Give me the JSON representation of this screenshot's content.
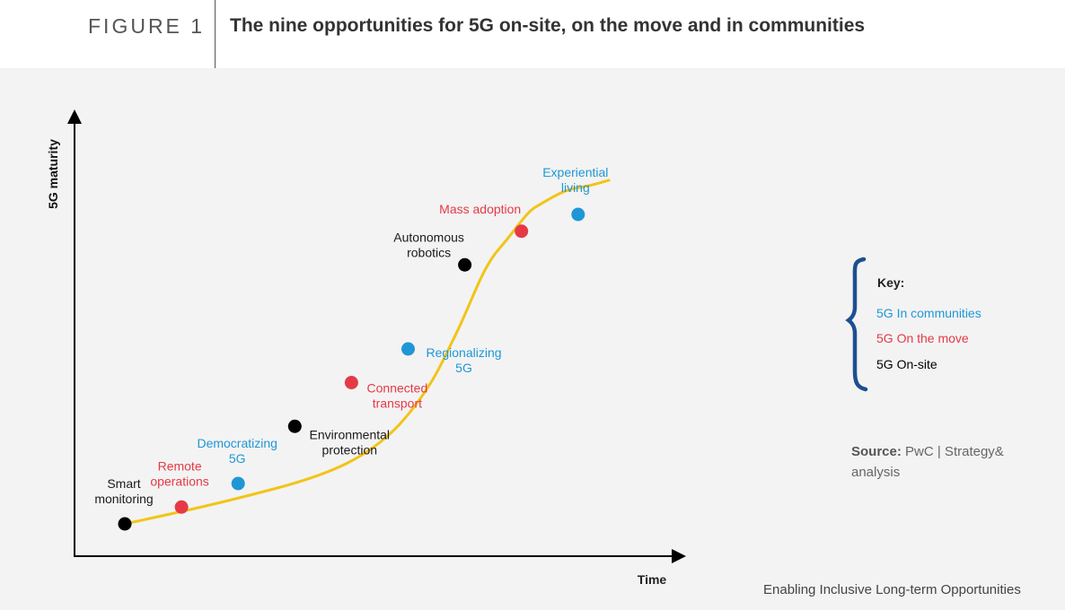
{
  "header": {
    "figure_label": "FIGURE 1",
    "title": "The nine opportunities for 5G on-site, on the move and in communities"
  },
  "chart_data": {
    "type": "line",
    "title": "The nine opportunities for 5G on-site, on the move and in communities",
    "xlabel": "Time",
    "ylabel": "5G maturity",
    "points": [
      {
        "label": [
          "Smart",
          "monitoring"
        ],
        "category": "on-site",
        "x": 1,
        "y": 0.8
      },
      {
        "label": [
          "Remote",
          "operations"
        ],
        "category": "on-the-move",
        "x": 2,
        "y": 1.3
      },
      {
        "label": [
          "Democratizing",
          "5G"
        ],
        "category": "communities",
        "x": 3,
        "y": 2.0
      },
      {
        "label": [
          "Environmental",
          "protection"
        ],
        "category": "on-site",
        "x": 4,
        "y": 3.7
      },
      {
        "label": [
          "Connected",
          "transport"
        ],
        "category": "on-the-move",
        "x": 5,
        "y": 5.0
      },
      {
        "label": [
          "Regionalizing",
          "5G"
        ],
        "category": "communities",
        "x": 6,
        "y": 6.0
      },
      {
        "label": [
          "Autonomous",
          "robotics"
        ],
        "category": "on-site",
        "x": 7,
        "y": 8.5
      },
      {
        "label": [
          "Mass adoption"
        ],
        "category": "on-the-move",
        "x": 8,
        "y": 9.5
      },
      {
        "label": [
          "Experiential",
          "living"
        ],
        "category": "communities",
        "x": 9,
        "y": 10.0
      }
    ]
  },
  "colors": {
    "curve": "#f2c417",
    "communities": "#1f97d6",
    "on-the-move": "#e53a46",
    "on-site": "#000000",
    "brace": "#1d4f91",
    "axis": "#000000"
  },
  "key": {
    "title": "Key:",
    "items": [
      {
        "label": "5G In communities",
        "category": "communities"
      },
      {
        "label": "5G On the move",
        "category": "on-the-move"
      },
      {
        "label": "5G On-site",
        "category": "on-site"
      }
    ]
  },
  "source": {
    "label": "Source:",
    "text": "PwC | Strategy& analysis"
  },
  "footer": "Enabling Inclusive Long-term Opportunities"
}
